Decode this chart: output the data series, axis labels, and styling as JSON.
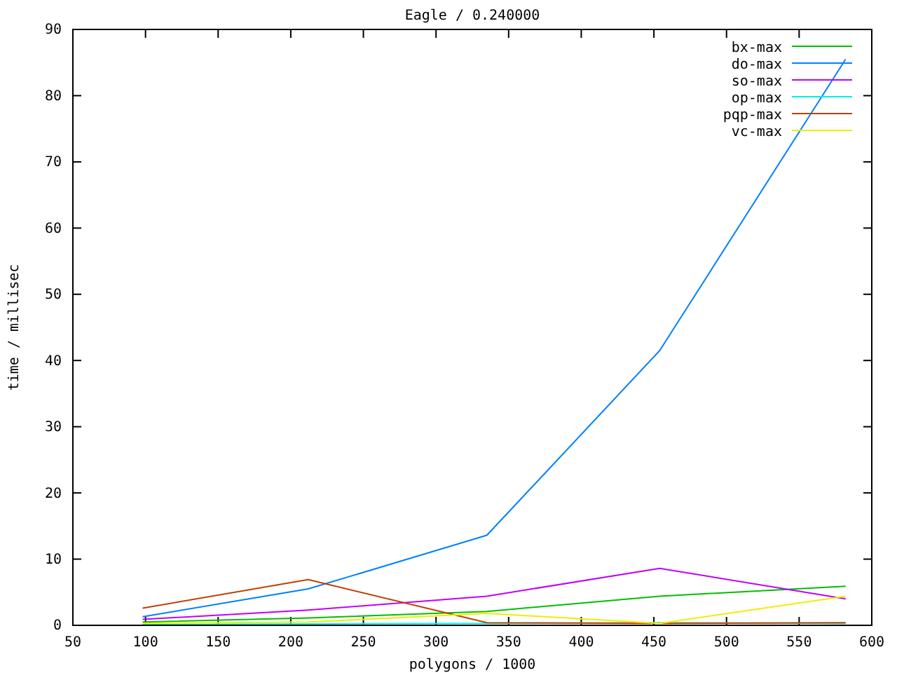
{
  "chart_data": {
    "type": "line",
    "title": "Eagle / 0.240000",
    "xlabel": "polygons / 1000",
    "ylabel": "time / millisec",
    "x": [
      98,
      212,
      335,
      454,
      582
    ],
    "series": [
      {
        "name": "bx-max",
        "color": "#00c000",
        "values": [
          0.5,
          1.1,
          2.1,
          4.4,
          5.9
        ]
      },
      {
        "name": "do-max",
        "color": "#0080ff",
        "values": [
          1.3,
          5.5,
          13.6,
          41.5,
          85.5
        ]
      },
      {
        "name": "so-max",
        "color": "#c000ff",
        "values": [
          0.9,
          2.3,
          4.4,
          8.6,
          4.0
        ]
      },
      {
        "name": "op-max",
        "color": "#00eeee",
        "values": [
          0.1,
          0.2,
          0.3,
          0.4,
          0.3
        ]
      },
      {
        "name": "pqp-max",
        "color": "#c04000",
        "values": [
          2.6,
          6.9,
          0.4,
          0.3,
          0.4
        ]
      },
      {
        "name": "vc-max",
        "color": "#eeee00",
        "values": [
          0.3,
          0.5,
          1.8,
          0.3,
          4.4
        ]
      }
    ],
    "xlim": [
      50,
      600
    ],
    "xticks": [
      50,
      100,
      150,
      200,
      250,
      300,
      350,
      400,
      450,
      500,
      550,
      600
    ],
    "ylim": [
      0,
      90
    ],
    "yticks": [
      0,
      10,
      20,
      30,
      40,
      50,
      60,
      70,
      80,
      90
    ],
    "grid": false,
    "legend": "top right",
    "marker": "none",
    "line_style": "solid"
  }
}
